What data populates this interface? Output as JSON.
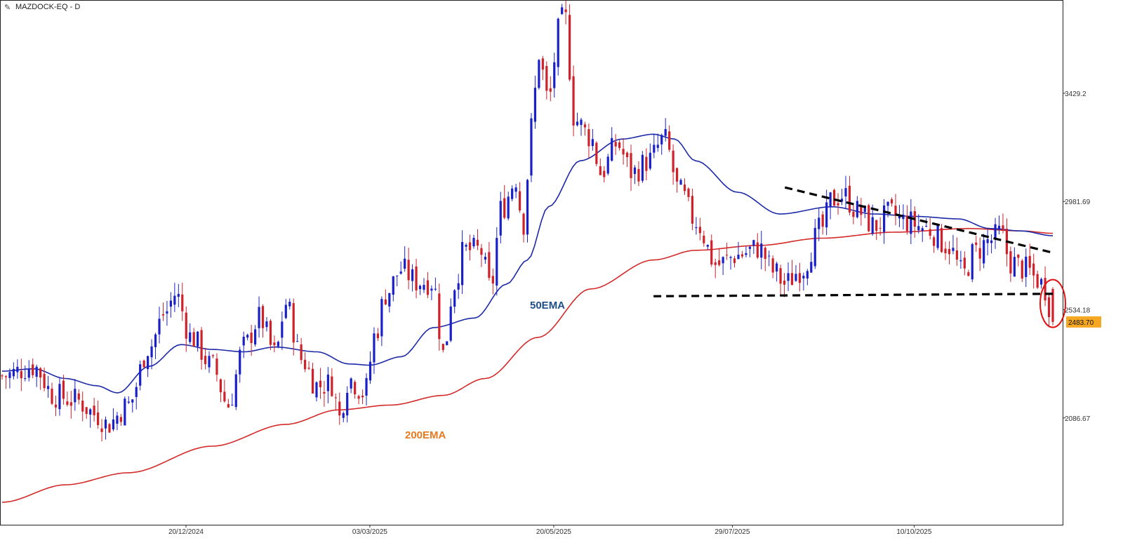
{
  "title": "MAZDOCK-EQ - D",
  "title_icon": "pencil-icon",
  "colors": {
    "up_candle": "#1a20c8",
    "down_candle": "#d0202a",
    "ema50": "#1c2aa8",
    "ema200": "#d42a2a",
    "ema50_label": "#1f4f8a",
    "ema200_label": "#e8791f",
    "badge": "#f5a623",
    "trendline": "#000000",
    "highlight_circle": "#e01010"
  },
  "chart_data": {
    "type": "candlestick",
    "title": "MAZDOCK-EQ - D",
    "x_tick_labels": [
      "20/12/2024",
      "03/03/2025",
      "20/05/2025",
      "29/07/2025",
      "10/10/2025"
    ],
    "y_tick_labels": [
      "3429.2",
      "2981.69",
      "2534.18",
      "2086.67"
    ],
    "y_ticks": [
      3429.2,
      2981.69,
      2534.18,
      2086.67
    ],
    "last_price": "2483.70",
    "last_price_value": 2483.7,
    "ylim": [
      1645,
      3815
    ],
    "grid": false,
    "legend": "none",
    "annotations": [
      {
        "text": "50EMA",
        "kind": "ema50"
      },
      {
        "text": "200EMA",
        "kind": "ema200"
      }
    ],
    "series": [
      {
        "name": "50EMA",
        "kind": "line"
      },
      {
        "name": "200EMA",
        "kind": "line"
      }
    ],
    "trendlines": [
      {
        "name": "descending-resistance",
        "style": "dashed",
        "from": {
          "index": 0.745,
          "value": 3040
        },
        "to": {
          "index": 1.0,
          "value": 2770
        }
      },
      {
        "name": "horizontal-support",
        "style": "dashed",
        "from": {
          "index": 0.62,
          "value": 2590
        },
        "to": {
          "index": 1.0,
          "value": 2600
        }
      }
    ],
    "ema200_knots": [
      [
        0.0,
        1738
      ],
      [
        0.06,
        1810
      ],
      [
        0.12,
        1860
      ],
      [
        0.2,
        1970
      ],
      [
        0.27,
        2060
      ],
      [
        0.32,
        2120
      ],
      [
        0.37,
        2140
      ],
      [
        0.42,
        2180
      ],
      [
        0.46,
        2250
      ],
      [
        0.51,
        2420
      ],
      [
        0.56,
        2620
      ],
      [
        0.62,
        2740
      ],
      [
        0.66,
        2780
      ],
      [
        0.72,
        2800
      ],
      [
        0.78,
        2830
      ],
      [
        0.85,
        2855
      ],
      [
        0.92,
        2870
      ],
      [
        0.97,
        2860
      ],
      [
        1.0,
        2850
      ]
    ],
    "ema50_knots": [
      [
        0.0,
        2280
      ],
      [
        0.03,
        2290
      ],
      [
        0.06,
        2250
      ],
      [
        0.09,
        2220
      ],
      [
        0.11,
        2190
      ],
      [
        0.14,
        2300
      ],
      [
        0.17,
        2390
      ],
      [
        0.2,
        2370
      ],
      [
        0.23,
        2360
      ],
      [
        0.26,
        2380
      ],
      [
        0.3,
        2360
      ],
      [
        0.33,
        2310
      ],
      [
        0.35,
        2305
      ],
      [
        0.38,
        2340
      ],
      [
        0.41,
        2460
      ],
      [
        0.45,
        2500
      ],
      [
        0.48,
        2640
      ],
      [
        0.5,
        2740
      ],
      [
        0.52,
        2960
      ],
      [
        0.55,
        3150
      ],
      [
        0.59,
        3240
      ],
      [
        0.62,
        3260
      ],
      [
        0.64,
        3240
      ],
      [
        0.66,
        3150
      ],
      [
        0.7,
        3020
      ],
      [
        0.74,
        2930
      ],
      [
        0.79,
        2960
      ],
      [
        0.83,
        2930
      ],
      [
        0.87,
        2920
      ],
      [
        0.91,
        2910
      ],
      [
        0.94,
        2870
      ],
      [
        0.97,
        2860
      ],
      [
        1.0,
        2840
      ]
    ],
    "price_knots": [
      [
        0.0,
        2260
      ],
      [
        0.03,
        2300
      ],
      [
        0.05,
        2180
      ],
      [
        0.07,
        2160
      ],
      [
        0.09,
        2100
      ],
      [
        0.1,
        2060
      ],
      [
        0.12,
        2140
      ],
      [
        0.14,
        2380
      ],
      [
        0.155,
        2520
      ],
      [
        0.165,
        2600
      ],
      [
        0.18,
        2420
      ],
      [
        0.2,
        2300
      ],
      [
        0.215,
        2140
      ],
      [
        0.23,
        2380
      ],
      [
        0.245,
        2500
      ],
      [
        0.26,
        2350
      ],
      [
        0.27,
        2560
      ],
      [
        0.285,
        2330
      ],
      [
        0.3,
        2220
      ],
      [
        0.315,
        2230
      ],
      [
        0.32,
        2080
      ],
      [
        0.33,
        2250
      ],
      [
        0.345,
        2190
      ],
      [
        0.355,
        2430
      ],
      [
        0.365,
        2600
      ],
      [
        0.38,
        2700
      ],
      [
        0.395,
        2650
      ],
      [
        0.41,
        2650
      ],
      [
        0.42,
        2350
      ],
      [
        0.43,
        2640
      ],
      [
        0.44,
        2780
      ],
      [
        0.455,
        2780
      ],
      [
        0.465,
        2620
      ],
      [
        0.475,
        2950
      ],
      [
        0.49,
        3080
      ],
      [
        0.495,
        2870
      ],
      [
        0.505,
        3310
      ],
      [
        0.51,
        3600
      ],
      [
        0.52,
        3400
      ],
      [
        0.53,
        3690
      ],
      [
        0.535,
        3760
      ],
      [
        0.545,
        3320
      ],
      [
        0.56,
        3250
      ],
      [
        0.57,
        3100
      ],
      [
        0.585,
        3220
      ],
      [
        0.6,
        3100
      ],
      [
        0.615,
        3150
      ],
      [
        0.63,
        3240
      ],
      [
        0.645,
        3020
      ],
      [
        0.66,
        2900
      ],
      [
        0.68,
        2720
      ],
      [
        0.7,
        2760
      ],
      [
        0.72,
        2790
      ],
      [
        0.735,
        2690
      ],
      [
        0.745,
        2640
      ],
      [
        0.76,
        2700
      ],
      [
        0.78,
        2870
      ],
      [
        0.79,
        2990
      ],
      [
        0.8,
        3010
      ],
      [
        0.815,
        2940
      ],
      [
        0.83,
        2880
      ],
      [
        0.845,
        2930
      ],
      [
        0.86,
        2900
      ],
      [
        0.88,
        2870
      ],
      [
        0.9,
        2800
      ],
      [
        0.915,
        2680
      ],
      [
        0.925,
        2770
      ],
      [
        0.94,
        2820
      ],
      [
        0.95,
        2850
      ],
      [
        0.96,
        2730
      ],
      [
        0.975,
        2700
      ],
      [
        0.985,
        2660
      ],
      [
        0.993,
        2620
      ],
      [
        1.0,
        2483.7
      ]
    ]
  }
}
